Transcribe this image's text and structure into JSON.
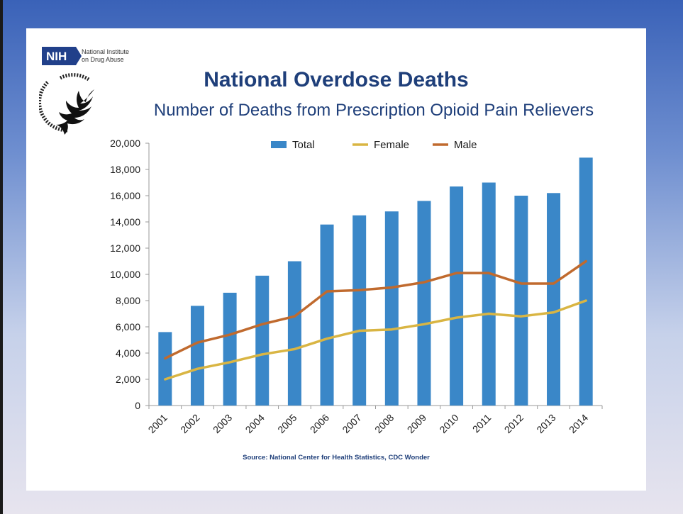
{
  "slide": {
    "logo": {
      "badge_text": "NIH",
      "org_line1": "National Institute",
      "org_line2": "on Drug Abuse"
    },
    "source": "Source: National Center for Health Statistics, CDC Wonder"
  },
  "chart_data": {
    "type": "bar",
    "title": "National Overdose Deaths",
    "subtitle": "Number of Deaths from Prescription Opioid Pain Relievers",
    "categories": [
      "2001",
      "2002",
      "2003",
      "2004",
      "2005",
      "2006",
      "2007",
      "2008",
      "2009",
      "2010",
      "2011",
      "2012",
      "2013",
      "2014"
    ],
    "series": [
      {
        "name": "Total",
        "kind": "bar",
        "color": "#3a87c8",
        "values": [
          5600,
          7600,
          8600,
          9900,
          11000,
          13800,
          14500,
          14800,
          15600,
          16700,
          17000,
          16000,
          16200,
          18900
        ]
      },
      {
        "name": "Female",
        "kind": "line",
        "color": "#d9b543",
        "values": [
          2000,
          2800,
          3300,
          3900,
          4300,
          5100,
          5700,
          5800,
          6200,
          6700,
          7000,
          6800,
          7100,
          8000
        ]
      },
      {
        "name": "Male",
        "kind": "line",
        "color": "#c06a2e",
        "values": [
          3600,
          4800,
          5400,
          6200,
          6800,
          8700,
          8800,
          9000,
          9400,
          10100,
          10100,
          9300,
          9300,
          11000
        ]
      }
    ],
    "ylim": [
      0,
      20000
    ],
    "yticks": [
      0,
      2000,
      4000,
      6000,
      8000,
      10000,
      12000,
      14000,
      16000,
      18000,
      20000
    ],
    "ytick_labels": [
      "0",
      "2,000",
      "4,000",
      "6,000",
      "8,000",
      "10,000",
      "12,000",
      "14,000",
      "16,000",
      "18,000",
      "20,000"
    ],
    "grid": false,
    "legend_position": "top-center"
  }
}
